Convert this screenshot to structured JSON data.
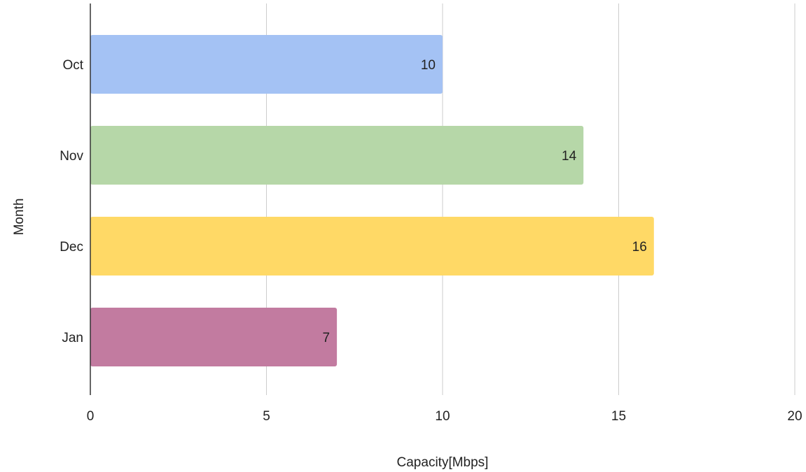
{
  "chart_data": {
    "type": "bar",
    "orientation": "horizontal",
    "categories": [
      "Oct",
      "Nov",
      "Dec",
      "Jan"
    ],
    "values": [
      10,
      14,
      16,
      7
    ],
    "colors": [
      "#a4c2f4",
      "#b6d7a8",
      "#ffd966",
      "#c27ba0"
    ],
    "data_labels": [
      "10",
      "14",
      "16",
      "7"
    ],
    "xlabel": "Capacity[Mbps]",
    "ylabel": "Month",
    "xlim": [
      0,
      20
    ],
    "xticks": [
      0,
      5,
      10,
      15,
      20
    ],
    "xtick_labels": [
      "0",
      "5",
      "10",
      "15",
      "20"
    ],
    "grid": "vertical",
    "legend": "none"
  }
}
